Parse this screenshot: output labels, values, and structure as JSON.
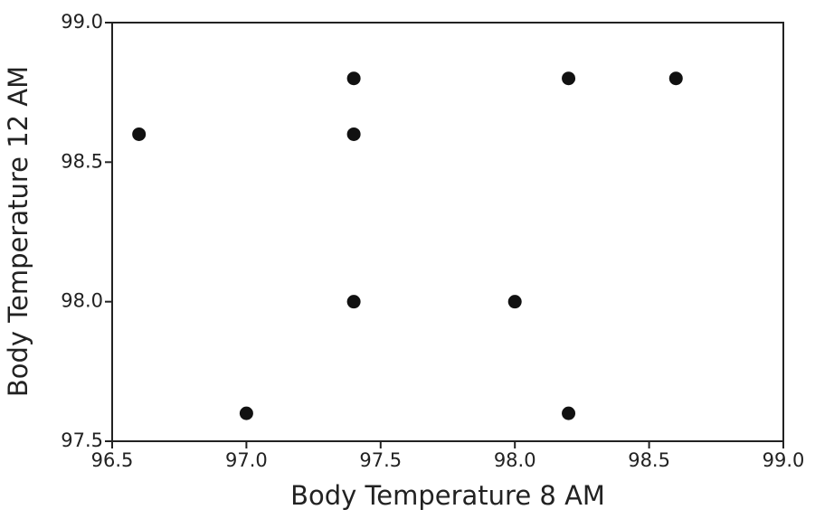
{
  "chart_data": {
    "type": "scatter",
    "x_label": "Body Temperature 8 AM",
    "y_label": "Body Temperature 12 AM",
    "x": [
      96.6,
      97.0,
      97.4,
      97.4,
      97.4,
      98.0,
      98.2,
      98.2,
      98.6
    ],
    "values": [
      98.6,
      97.6,
      98.8,
      98.6,
      98.0,
      98.0,
      98.8,
      97.6,
      98.8
    ],
    "color": "#111111",
    "xlim": [
      96.5,
      99.0
    ],
    "ylim": [
      97.5,
      99.0
    ],
    "xticks": [
      96.5,
      {
        "value": 97.0,
        "label": "97.0"
      },
      97.5,
      {
        "value": 98.0,
        "label": "98.0"
      },
      98.5,
      {
        "value": 99.0,
        "label": "99.0"
      }
    ],
    "yticks": [
      97.5,
      {
        "value": 98.0,
        "label": "98.0"
      },
      98.5,
      {
        "value": 99.0,
        "label": "99.0"
      }
    ],
    "grid": false
  }
}
